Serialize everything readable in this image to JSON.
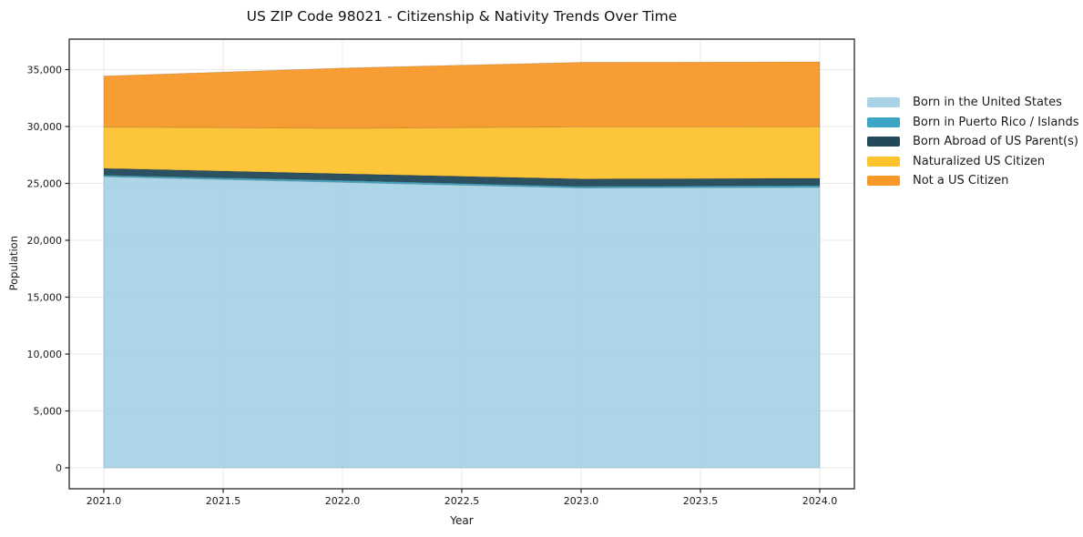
{
  "chart_data": {
    "type": "area",
    "stacked": true,
    "title": "US ZIP Code 98021 - Citizenship & Nativity Trends Over Time",
    "xlabel": "Year",
    "ylabel": "Population",
    "x": [
      2021,
      2022,
      2023,
      2024
    ],
    "series": [
      {
        "name": "Born in the United States",
        "color": "#a8d3e6",
        "values": [
          25600,
          25100,
          24600,
          24650
        ]
      },
      {
        "name": "Born in Puerto Rico / Islands",
        "color": "#3aa5c4",
        "values": [
          130,
          160,
          140,
          160
        ]
      },
      {
        "name": "Born Abroad of US Parent(s)",
        "color": "#21495a",
        "values": [
          590,
          590,
          650,
          640
        ]
      },
      {
        "name": "Naturalized US Citizen",
        "color": "#fdc32f",
        "values": [
          3630,
          4000,
          4590,
          4540
        ]
      },
      {
        "name": "Not a US Citizen",
        "color": "#f89828",
        "values": [
          4490,
          5290,
          5670,
          5690
        ]
      }
    ],
    "totals": [
      34440,
      35140,
      35650,
      35680
    ],
    "x_tick_labels": [
      "2021.0",
      "2021.5",
      "2022.0",
      "2022.5",
      "2023.0",
      "2023.5",
      "2024.0"
    ],
    "x_tick_values": [
      2021,
      2021.5,
      2022,
      2022.5,
      2023,
      2023.5,
      2024
    ],
    "y_tick_labels": [
      "0",
      "5,000",
      "10,000",
      "15,000",
      "20,000",
      "25,000",
      "30,000",
      "35,000"
    ],
    "y_tick_values": [
      0,
      5000,
      10000,
      15000,
      20000,
      25000,
      30000,
      35000
    ],
    "xlim": [
      2020.855,
      2024.145
    ],
    "ylim": [
      -1840,
      37680
    ],
    "grid": true,
    "legend_position": "right-outside",
    "background": "#ffffff",
    "grid_color": "#e8e8e8",
    "frame_color": "#262626",
    "text_color": "#1a1a1a"
  }
}
